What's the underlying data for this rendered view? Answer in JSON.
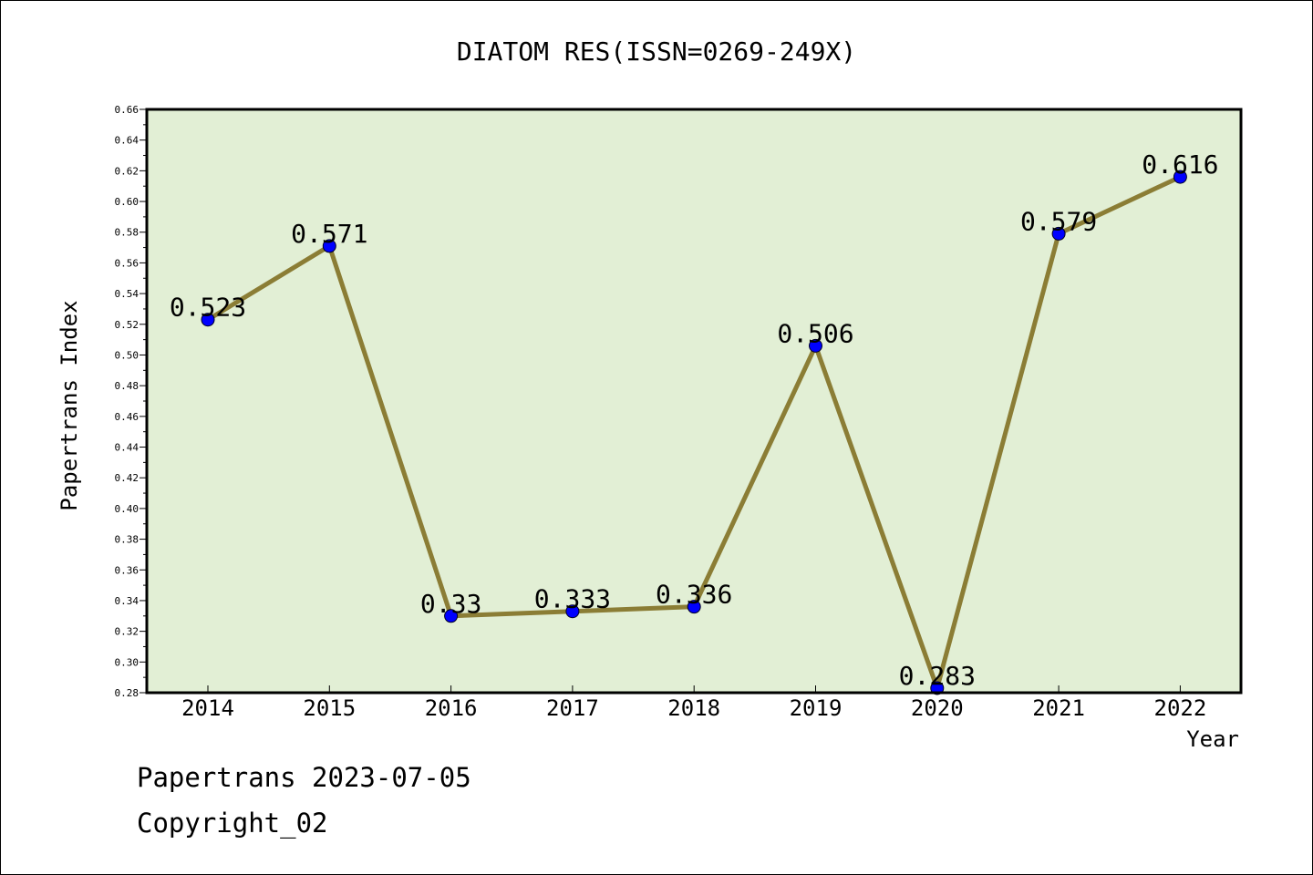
{
  "chart_data": {
    "type": "line",
    "title": "DIATOM RES(ISSN=0269-249X)",
    "xlabel": "Year",
    "ylabel": "Papertrans Index",
    "categories": [
      "2014",
      "2015",
      "2016",
      "2017",
      "2018",
      "2019",
      "2020",
      "2021",
      "2022"
    ],
    "values": [
      0.523,
      0.571,
      0.33,
      0.333,
      0.336,
      0.506,
      0.283,
      0.579,
      0.616
    ],
    "data_labels": [
      "0.523",
      "0.571",
      "0.33",
      "0.333",
      "0.336",
      "0.506",
      "0.283",
      "0.579",
      "0.616"
    ],
    "ylim": [
      0.28,
      0.66
    ],
    "yticks": [
      "0.28",
      "0.30",
      "0.32",
      "0.34",
      "0.36",
      "0.38",
      "0.40",
      "0.42",
      "0.44",
      "0.46",
      "0.48",
      "0.50",
      "0.52",
      "0.54",
      "0.56",
      "0.58",
      "0.60",
      "0.62",
      "0.64",
      "0.66"
    ],
    "grid": false,
    "colors": {
      "plot_bg": "#e2efd5",
      "line": "#8b7d35",
      "marker": "#0000ff"
    }
  },
  "footer": {
    "line1": "Papertrans 2023-07-05",
    "line2": "Copyright_02"
  }
}
